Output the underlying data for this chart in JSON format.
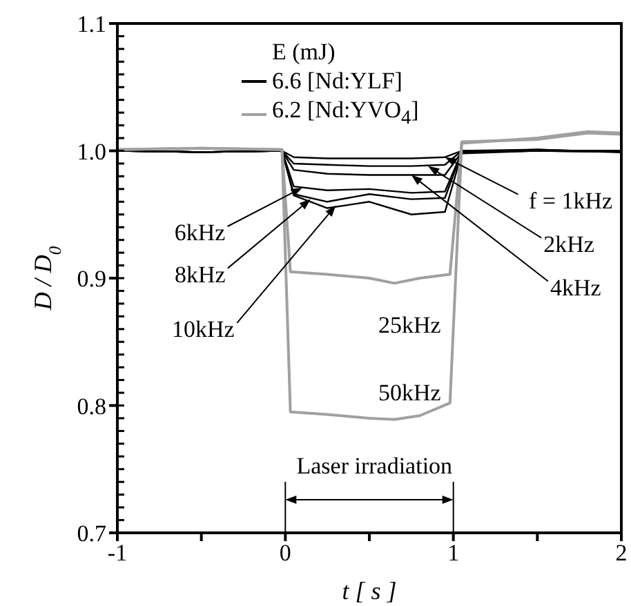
{
  "chart_data": {
    "type": "line",
    "xlabel": "t [ s ]",
    "ylabel": "D / D$_{0}$",
    "legend_title": "E (mJ)",
    "legend": "top left",
    "marker": "none",
    "line_style": "solid",
    "xlim": [
      -1,
      2
    ],
    "xticks": [
      -1,
      {
        "value": -0.5,
        "label": null
      },
      0,
      {
        "value": 0.5,
        "label": null
      },
      1,
      {
        "value": 1.5,
        "label": null
      },
      2
    ],
    "ylim": [
      0.7,
      1.1
    ],
    "yticks": [
      0.7,
      0.8,
      0.9,
      {
        "value": 1.0,
        "label": "1.0"
      },
      1.1
    ],
    "series": [
      {
        "name": "6.6 [Nd:YLF]",
        "color": "#000000",
        "x": [
          -1,
          -0.5,
          -0.02,
          0.05,
          0.25,
          0.5,
          0.75,
          0.95,
          1.05,
          1.5,
          2
        ],
        "values": [
          1.0,
          0.999,
          1.0,
          0.995,
          0.994,
          0.994,
          0.994,
          0.995,
          1.0,
          1.0,
          0.999
        ]
      },
      {
        "color": "#000000",
        "x": [
          -1,
          -0.5,
          -0.02,
          0.05,
          0.25,
          0.5,
          0.75,
          0.95,
          1.05,
          1.5,
          2
        ],
        "values": [
          1.0,
          0.999,
          1.0,
          0.99,
          0.989,
          0.988,
          0.988,
          0.989,
          1.0,
          1.001,
          0.999
        ]
      },
      {
        "color": "#000000",
        "x": [
          -1,
          -0.5,
          -0.02,
          0.05,
          0.25,
          0.5,
          0.75,
          0.95,
          1.05,
          1.5,
          2
        ],
        "values": [
          1.0,
          0.999,
          1.0,
          0.985,
          0.982,
          0.981,
          0.981,
          0.981,
          0.999,
          1.0,
          1.0
        ]
      },
      {
        "color": "#000000",
        "x": [
          -1,
          -0.5,
          -0.02,
          0.05,
          0.25,
          0.5,
          0.75,
          0.95,
          1.05,
          1.5,
          2
        ],
        "values": [
          1.0,
          0.999,
          1.0,
          0.972,
          0.969,
          0.97,
          0.967,
          0.968,
          0.999,
          1.001,
          0.999
        ]
      },
      {
        "color": "#000000",
        "x": [
          -1,
          -0.5,
          -0.02,
          0.05,
          0.25,
          0.5,
          0.75,
          0.95,
          1.05,
          1.5,
          2
        ],
        "values": [
          1.0,
          0.999,
          1.0,
          0.966,
          0.96,
          0.966,
          0.962,
          0.963,
          0.999,
          1.0,
          1.0
        ]
      },
      {
        "color": "#000000",
        "x": [
          -1,
          -0.5,
          -0.02,
          0.05,
          0.25,
          0.5,
          0.75,
          0.95,
          1.05,
          1.5,
          2
        ],
        "values": [
          1.0,
          0.999,
          1.0,
          0.965,
          0.955,
          0.96,
          0.95,
          0.952,
          0.998,
          1.0,
          0.999
        ]
      },
      {
        "name": "6.2 [Nd:YVO$_{4}$]",
        "color": "#a0a0a0",
        "x": [
          -1,
          -0.5,
          -0.02,
          0.03,
          0.25,
          0.5,
          0.65,
          0.8,
          0.98,
          1.05,
          1.5,
          1.8,
          2
        ],
        "values": [
          1.001,
          1.002,
          1.001,
          0.905,
          0.903,
          0.9,
          0.896,
          0.9,
          0.903,
          1.007,
          1.009,
          1.014,
          1.013
        ]
      },
      {
        "color": "#a0a0a0",
        "x": [
          -1,
          -0.5,
          -0.02,
          0.03,
          0.25,
          0.5,
          0.65,
          0.8,
          0.98,
          1.05,
          1.5,
          1.8,
          2
        ],
        "values": [
          1.001,
          1.002,
          1.001,
          0.795,
          0.793,
          0.79,
          0.789,
          0.792,
          0.802,
          1.006,
          1.01,
          1.015,
          1.014
        ]
      }
    ],
    "annotations": [
      {
        "text": "f = 1kHz",
        "x": 0.95,
        "y": 0.995
      },
      {
        "text": "2kHz",
        "x": 0.85,
        "y": 0.988
      },
      {
        "text": "4kHz",
        "x": 0.75,
        "y": 0.981
      },
      {
        "text": "6kHz",
        "x": 0.1,
        "y": 0.971
      },
      {
        "text": "8kHz",
        "x": 0.15,
        "y": 0.962
      },
      {
        "text": "10kHz",
        "x": 0.3,
        "y": 0.957
      },
      "25kHz",
      "50kHz",
      "Laser irradiation"
    ]
  }
}
